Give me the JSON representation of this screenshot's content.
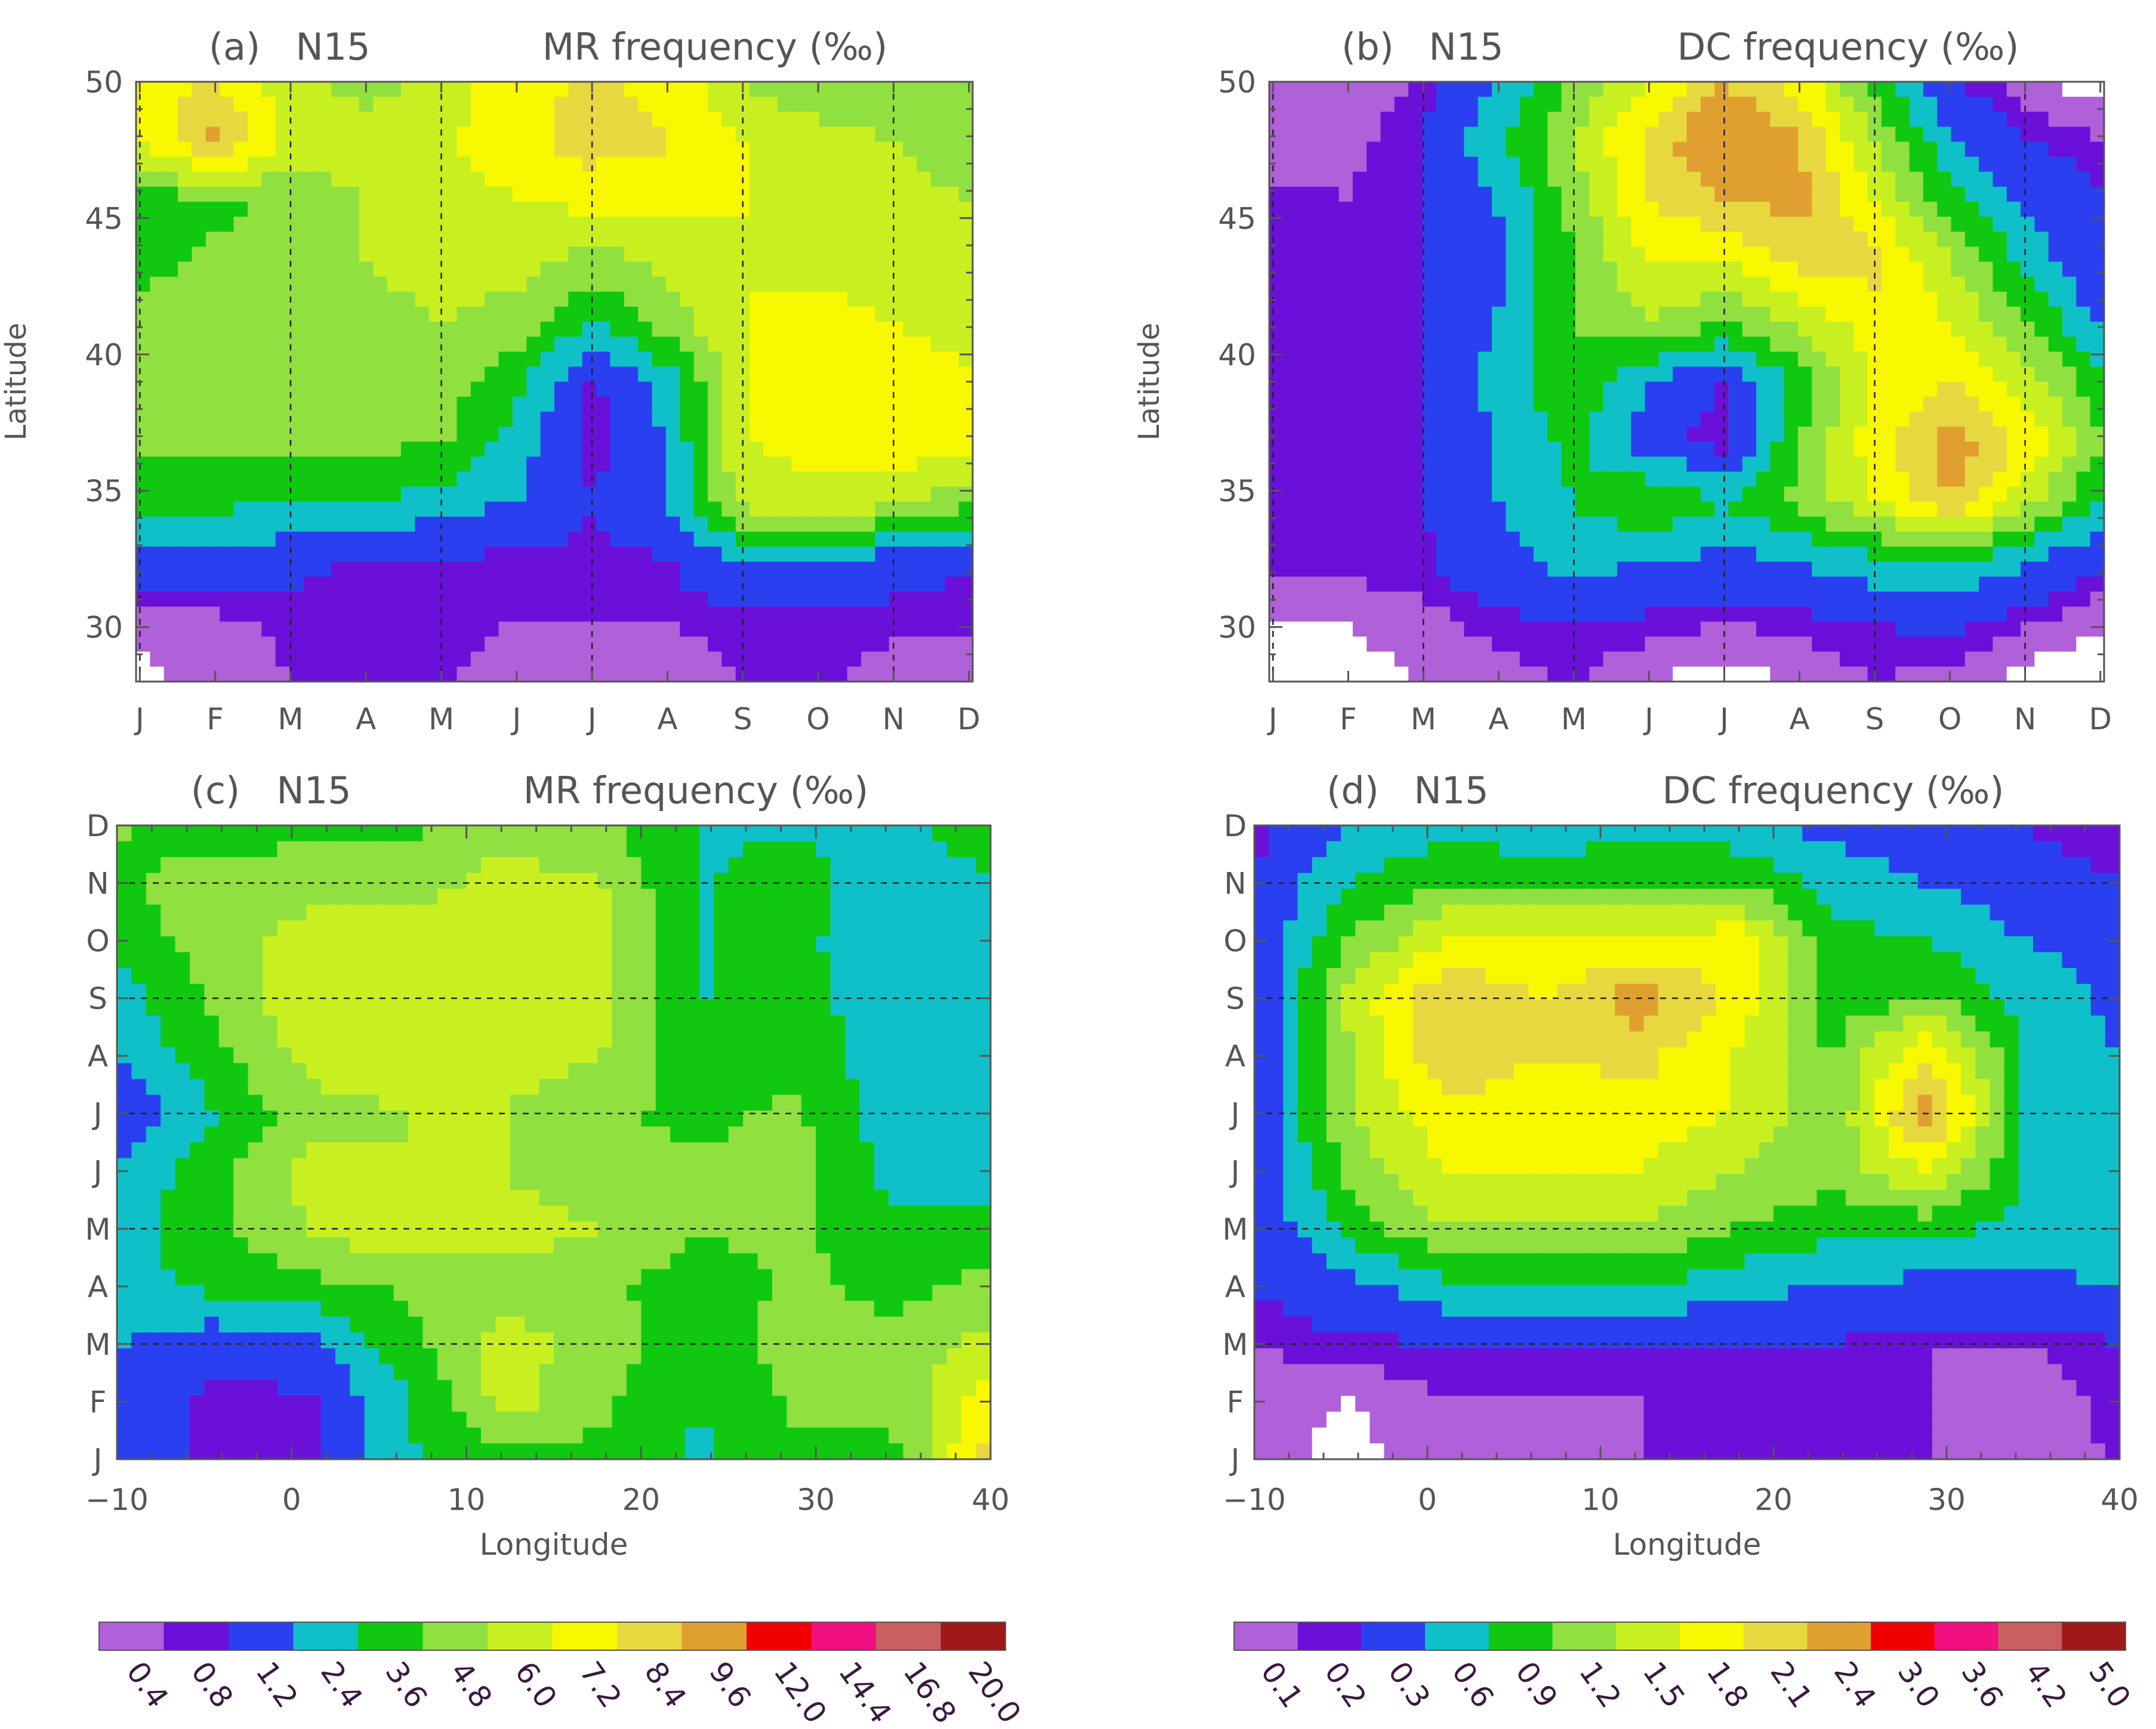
{
  "chart_data": [
    {
      "type": "heatmap",
      "panel_label": "(a)",
      "dataset_label": "N15",
      "title": "MR frequency (‰)",
      "ylabel": "Latitude",
      "xlabel": "",
      "xticklabels": [
        "J",
        "F",
        "M",
        "A",
        "M",
        "J",
        "J",
        "A",
        "S",
        "O",
        "N",
        "D"
      ],
      "yticks": [
        30,
        35,
        40,
        45,
        50
      ],
      "ylim": [
        28,
        50
      ],
      "dashed_x_months": [
        "J",
        "M",
        "M",
        "J",
        "S",
        "N"
      ],
      "zgrid": {
        "x": [
          "J",
          "F",
          "M",
          "A",
          "M",
          "J",
          "J",
          "A",
          "S",
          "O",
          "N",
          "D"
        ],
        "y": [
          29,
          31,
          33,
          35,
          37,
          39,
          41,
          43,
          45,
          47,
          49
        ],
        "z": [
          [
            0.2,
            0.6,
            0.8,
            0.9,
            0.9,
            0.5,
            0.5,
            0.5,
            0.8,
            0.9,
            0.6,
            0.6
          ],
          [
            0.6,
            0.6,
            0.9,
            1.0,
            1.0,
            0.8,
            0.8,
            0.8,
            1.0,
            1.0,
            0.9,
            0.9
          ],
          [
            2.0,
            2.0,
            1.5,
            1.0,
            1.0,
            1.0,
            1.0,
            1.1,
            2.4,
            2.4,
            1.5,
            1.3
          ],
          [
            4.0,
            4.0,
            3.6,
            3.8,
            3.0,
            2.4,
            1.2,
            2.5,
            6.5,
            7.0,
            6.5,
            5.0
          ],
          [
            5.0,
            5.0,
            5.0,
            5.0,
            5.0,
            3.0,
            0.8,
            2.4,
            7.2,
            7.5,
            8.0,
            7.5
          ],
          [
            5.0,
            5.5,
            5.2,
            5.5,
            5.5,
            4.0,
            1.0,
            3.0,
            7.2,
            7.5,
            8.0,
            7.5
          ],
          [
            5.0,
            5.5,
            5.0,
            5.5,
            6.0,
            5.5,
            3.5,
            5.5,
            7.2,
            7.5,
            7.2,
            6.5
          ],
          [
            4.5,
            5.0,
            5.5,
            6.0,
            6.5,
            6.5,
            5.5,
            6.2,
            7.2,
            7.0,
            6.5,
            6.0
          ],
          [
            4.0,
            4.5,
            5.0,
            6.0,
            6.5,
            7.2,
            7.5,
            7.5,
            7.2,
            6.5,
            6.2,
            6.0
          ],
          [
            7.0,
            10.0,
            7.0,
            6.5,
            7.0,
            8.0,
            9.0,
            8.5,
            7.2,
            6.5,
            6.0,
            5.5
          ],
          [
            8.0,
            8.5,
            6.5,
            5.5,
            6.5,
            8.0,
            8.5,
            8.0,
            6.0,
            5.0,
            5.0,
            5.0
          ]
        ]
      }
    },
    {
      "type": "heatmap",
      "panel_label": "(b)",
      "dataset_label": "N15",
      "title": "DC frequency (‰)",
      "ylabel": "Latitude",
      "xlabel": "",
      "xticklabels": [
        "J",
        "F",
        "M",
        "A",
        "M",
        "J",
        "J",
        "A",
        "S",
        "O",
        "N",
        "D"
      ],
      "yticks": [
        30,
        35,
        40,
        45,
        50
      ],
      "ylim": [
        28,
        50
      ],
      "dashed_x_months": [
        "J",
        "M",
        "M",
        "J",
        "S",
        "N"
      ],
      "zgrid": {
        "x": [
          "J",
          "F",
          "M",
          "A",
          "M",
          "J",
          "J",
          "A",
          "S",
          "O",
          "N",
          "D"
        ],
        "y": [
          29,
          31,
          33,
          35,
          37,
          39,
          41,
          43,
          45,
          47,
          49
        ],
        "z": [
          [
            0.05,
            0.05,
            0.1,
            0.15,
            0.2,
            0.1,
            0.05,
            0.1,
            0.2,
            0.15,
            0.05,
            0.05
          ],
          [
            0.1,
            0.1,
            0.15,
            0.25,
            0.3,
            0.25,
            0.2,
            0.25,
            0.3,
            0.35,
            0.2,
            0.1
          ],
          [
            0.25,
            0.25,
            0.25,
            0.5,
            0.7,
            0.6,
            0.5,
            0.6,
            0.8,
            0.9,
            0.6,
            0.3
          ],
          [
            0.3,
            0.25,
            0.3,
            0.6,
            0.9,
            1.2,
            0.9,
            1.3,
            1.8,
            2.4,
            1.6,
            0.8
          ],
          [
            0.3,
            0.25,
            0.3,
            0.6,
            1.0,
            0.4,
            0.2,
            1.2,
            2.0,
            2.6,
            2.0,
            1.2
          ],
          [
            0.3,
            0.25,
            0.3,
            0.7,
            1.2,
            0.6,
            0.3,
            1.0,
            1.8,
            2.1,
            1.6,
            1.0
          ],
          [
            0.3,
            0.25,
            0.3,
            0.6,
            1.2,
            1.5,
            1.2,
            1.6,
            2.0,
            1.8,
            1.2,
            0.5
          ],
          [
            0.25,
            0.2,
            0.3,
            0.5,
            1.2,
            1.8,
            1.8,
            2.2,
            2.2,
            1.5,
            0.8,
            0.3
          ],
          [
            0.25,
            0.2,
            0.3,
            0.6,
            1.3,
            2.1,
            2.4,
            2.5,
            1.8,
            1.0,
            0.5,
            0.3
          ],
          [
            0.1,
            0.15,
            0.3,
            0.8,
            1.5,
            2.2,
            2.8,
            2.4,
            1.5,
            0.6,
            0.3,
            0.2
          ],
          [
            0.1,
            0.1,
            0.2,
            0.6,
            1.2,
            1.8,
            2.4,
            2.0,
            1.0,
            0.3,
            0.1,
            0.05
          ]
        ]
      }
    },
    {
      "type": "heatmap",
      "panel_label": "(c)",
      "dataset_label": "N15",
      "title": "MR frequency (‰)",
      "xlabel": "Longitude",
      "ylabel": "",
      "xticks": [
        -10,
        0,
        10,
        20,
        30,
        40
      ],
      "xlim": [
        -10,
        40
      ],
      "yticklabels": [
        "J",
        "F",
        "M",
        "A",
        "M",
        "J",
        "J",
        "A",
        "S",
        "O",
        "N",
        "D"
      ],
      "dashed_y_months": [
        "M",
        "M",
        "J",
        "S",
        "N"
      ],
      "zgrid": {
        "x": [
          -7.5,
          -2.5,
          2.5,
          7.5,
          12.5,
          17.5,
          22.5,
          27.5,
          32.5,
          37.5
        ],
        "y": [
          "J",
          "F",
          "M",
          "A",
          "M",
          "J",
          "J",
          "A",
          "S",
          "O",
          "N",
          "D"
        ],
        "z": [
          [
            2.0,
            1.0,
            1.0,
            3.5,
            4.5,
            4.5,
            3.5,
            4.5,
            4.5,
            9.0
          ],
          [
            2.0,
            1.0,
            1.0,
            3.5,
            6.5,
            5.0,
            3.5,
            5.0,
            5.0,
            8.0
          ],
          [
            2.5,
            1.5,
            2.0,
            4.5,
            6.5,
            5.5,
            4.0,
            5.5,
            5.0,
            6.5
          ],
          [
            3.0,
            4.0,
            4.5,
            5.0,
            5.5,
            5.0,
            4.0,
            5.0,
            4.5,
            5.0
          ],
          [
            3.0,
            4.5,
            6.0,
            7.2,
            6.5,
            6.0,
            5.0,
            5.0,
            4.0,
            4.5
          ],
          [
            2.5,
            4.5,
            6.5,
            6.0,
            6.0,
            5.0,
            5.0,
            5.5,
            3.0,
            2.5
          ],
          [
            1.0,
            3.5,
            5.5,
            6.0,
            6.0,
            5.0,
            4.5,
            5.0,
            3.0,
            2.5
          ],
          [
            2.5,
            4.5,
            6.5,
            6.5,
            6.5,
            6.0,
            4.0,
            4.5,
            2.5,
            2.5
          ],
          [
            3.0,
            5.0,
            7.2,
            6.5,
            7.0,
            6.5,
            3.5,
            4.0,
            3.0,
            3.0
          ],
          [
            4.0,
            5.5,
            6.5,
            6.5,
            7.0,
            6.5,
            3.5,
            4.0,
            2.5,
            3.0
          ],
          [
            4.5,
            5.5,
            5.5,
            5.5,
            6.5,
            6.0,
            3.5,
            4.0,
            3.0,
            3.5
          ],
          [
            5.0,
            4.0,
            4.5,
            4.5,
            5.5,
            5.0,
            3.5,
            3.5,
            3.5,
            4.0
          ]
        ]
      }
    },
    {
      "type": "heatmap",
      "panel_label": "(d)",
      "dataset_label": "N15",
      "title": "DC frequency (‰)",
      "xlabel": "Longitude",
      "ylabel": "",
      "xticks": [
        -10,
        0,
        10,
        20,
        30,
        40
      ],
      "xlim": [
        -10,
        40
      ],
      "yticklabels": [
        "J",
        "F",
        "M",
        "A",
        "M",
        "J",
        "J",
        "A",
        "S",
        "O",
        "N",
        "D"
      ],
      "dashed_y_months": [
        "M",
        "M",
        "J",
        "S",
        "N"
      ],
      "zgrid": {
        "x": [
          -7.5,
          -2.5,
          2.5,
          7.5,
          12.5,
          17.5,
          22.5,
          27.5,
          32.5,
          37.5
        ],
        "y": [
          "J",
          "F",
          "M",
          "A",
          "M",
          "J",
          "J",
          "A",
          "S",
          "O",
          "N",
          "D"
        ],
        "z": [
          [
            0.15,
            0.05,
            0.2,
            0.15,
            0.2,
            0.3,
            0.25,
            0.2,
            0.15,
            0.2
          ],
          [
            0.15,
            0.1,
            0.2,
            0.2,
            0.2,
            0.3,
            0.25,
            0.2,
            0.1,
            0.25
          ],
          [
            0.2,
            0.25,
            0.3,
            0.3,
            0.3,
            0.3,
            0.3,
            0.2,
            0.2,
            0.3
          ],
          [
            0.3,
            0.5,
            0.8,
            0.9,
            0.9,
            0.7,
            0.6,
            0.5,
            0.5,
            0.6
          ],
          [
            0.3,
            1.0,
            1.5,
            1.5,
            1.5,
            1.2,
            1.0,
            1.0,
            0.8,
            0.8
          ],
          [
            0.35,
            1.3,
            1.8,
            1.8,
            1.8,
            1.5,
            1.3,
            1.8,
            0.9,
            0.8
          ],
          [
            0.3,
            1.5,
            2.0,
            1.8,
            2.0,
            1.8,
            1.2,
            2.6,
            0.9,
            0.6
          ],
          [
            0.3,
            1.5,
            2.4,
            2.1,
            2.2,
            1.8,
            1.2,
            2.1,
            0.9,
            0.6
          ],
          [
            0.3,
            1.6,
            2.4,
            2.1,
            2.6,
            2.0,
            1.0,
            1.2,
            0.8,
            0.5
          ],
          [
            0.3,
            1.2,
            1.8,
            1.8,
            1.8,
            2.0,
            1.0,
            0.9,
            0.6,
            0.5
          ],
          [
            0.3,
            0.9,
            1.2,
            1.2,
            1.2,
            1.2,
            0.8,
            0.6,
            0.4,
            0.3
          ],
          [
            0.2,
            0.6,
            0.8,
            0.6,
            0.8,
            0.7,
            0.5,
            0.4,
            0.3,
            0.2
          ]
        ]
      }
    }
  ],
  "colorbars": [
    {
      "for_panels": [
        "(a)",
        "(c)"
      ],
      "levels": [
        "0.4",
        "0.8",
        "1.2",
        "2.4",
        "3.6",
        "4.8",
        "6.0",
        "7.2",
        "8.4",
        "9.6",
        "12.0",
        "14.4",
        "16.8",
        "20.0"
      ],
      "bounds": [
        0.4,
        0.8,
        1.2,
        2.4,
        3.6,
        4.8,
        6.0,
        7.2,
        8.4,
        9.6,
        12.0,
        14.4,
        16.8,
        20.0
      ]
    },
    {
      "for_panels": [
        "(b)",
        "(d)"
      ],
      "levels": [
        "0.1",
        "0.2",
        "0.3",
        "0.6",
        "0.9",
        "1.2",
        "1.5",
        "1.8",
        "2.1",
        "2.4",
        "3.0",
        "3.6",
        "4.2",
        "5.0"
      ],
      "bounds": [
        0.1,
        0.2,
        0.3,
        0.6,
        0.9,
        1.2,
        1.5,
        1.8,
        2.1,
        2.4,
        3.0,
        3.6,
        4.2,
        5.0
      ]
    }
  ],
  "colors": [
    "#b060d8",
    "#6a10d8",
    "#2a40f0",
    "#10c0c8",
    "#10c810",
    "#90e040",
    "#c8f020",
    "#f8f800",
    "#e8d840",
    "#e0a030",
    "#f00000",
    "#f01080",
    "#c86060",
    "#a01818"
  ],
  "below_min_color": "#ffffff"
}
